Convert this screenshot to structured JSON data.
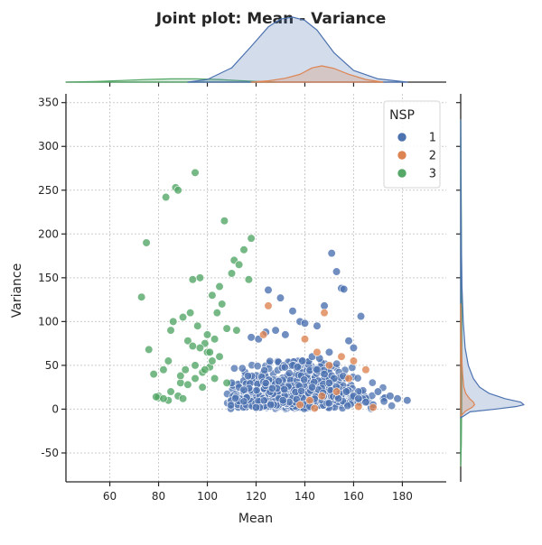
{
  "chart_data": {
    "type": "scatter",
    "title": "Joint plot: Mean - Variance",
    "xlabel": "Mean",
    "ylabel": "Variance",
    "xlim": [
      42,
      198
    ],
    "ylim": [
      -83,
      360
    ],
    "x_ticks": [
      60,
      80,
      100,
      120,
      140,
      160,
      180
    ],
    "y_ticks": [
      -50,
      0,
      50,
      100,
      150,
      200,
      250,
      300,
      350
    ],
    "grid": true,
    "legend": {
      "title": "NSP",
      "placement": "top-right",
      "entries": [
        "1",
        "2",
        "3"
      ]
    },
    "colors": {
      "1": "#4c72b0",
      "2": "#dd8452",
      "3": "#55a868"
    },
    "series": [
      {
        "name": "1",
        "x": [
          151,
          153,
          155,
          156,
          163,
          148,
          138,
          125,
          130,
          135,
          140,
          145,
          128,
          124,
          132,
          118,
          121,
          158,
          160,
          150,
          143,
          146,
          139,
          170,
          175,
          178,
          182,
          165,
          168,
          113,
          110,
          115,
          145,
          148,
          152,
          135,
          137,
          150,
          143,
          157,
          160,
          162,
          131,
          126,
          142,
          120
        ],
        "y": [
          178,
          157,
          138,
          137,
          106,
          118,
          100,
          136,
          127,
          112,
          98,
          95,
          90,
          88,
          85,
          82,
          80,
          78,
          70,
          65,
          60,
          58,
          55,
          20,
          15,
          12,
          10,
          8,
          5,
          25,
          30,
          22,
          45,
          40,
          35,
          50,
          48,
          30,
          25,
          20,
          15,
          12,
          10,
          5,
          3,
          2
        ]
      },
      {
        "name": "2",
        "x": [
          125,
          148,
          123,
          140,
          145,
          155,
          160,
          150,
          165,
          158,
          153,
          147,
          142,
          138,
          162,
          168,
          144
        ],
        "y": [
          118,
          110,
          85,
          80,
          65,
          60,
          55,
          50,
          45,
          35,
          20,
          15,
          10,
          5,
          3,
          2,
          1
        ]
      },
      {
        "name": "3",
        "x": [
          73,
          75,
          76,
          78,
          80,
          82,
          83,
          84,
          85,
          86,
          87,
          88,
          89,
          90,
          91,
          92,
          93,
          94,
          95,
          96,
          97,
          98,
          99,
          100,
          101,
          102,
          103,
          104,
          105,
          106,
          107,
          108,
          110,
          111,
          113,
          115,
          117,
          118,
          88,
          92,
          95,
          98,
          102,
          80,
          82,
          85,
          90,
          95,
          100,
          105,
          79,
          84,
          89,
          94,
          99,
          103,
          108,
          112,
          97,
          101
        ],
        "y": [
          128,
          190,
          68,
          40,
          15,
          45,
          242,
          10,
          90,
          100,
          253,
          250,
          30,
          105,
          45,
          78,
          110,
          148,
          270,
          95,
          150,
          25,
          75,
          65,
          48,
          130,
          35,
          110,
          140,
          120,
          215,
          92,
          155,
          170,
          165,
          182,
          148,
          195,
          15,
          28,
          35,
          42,
          55,
          13,
          12,
          20,
          12,
          50,
          85,
          60,
          14,
          55,
          38,
          72,
          45,
          80,
          30,
          90,
          70,
          65
        ]
      }
    ],
    "marginal": {
      "x_kde": {
        "1": {
          "x": [
            92,
            100,
            110,
            118,
            125,
            130,
            135,
            140,
            145,
            152,
            160,
            170,
            182
          ],
          "density": [
            0.0,
            0.04,
            0.22,
            0.55,
            0.85,
            0.97,
            1.0,
            0.95,
            0.8,
            0.45,
            0.18,
            0.05,
            0.0
          ]
        },
        "2": {
          "x": [
            118,
            125,
            132,
            138,
            143,
            147,
            152,
            158,
            165,
            172
          ],
          "density": [
            0.0,
            0.02,
            0.06,
            0.12,
            0.22,
            0.25,
            0.21,
            0.12,
            0.04,
            0.0
          ]
        },
        "3": {
          "x": [
            42,
            55,
            65,
            75,
            85,
            95,
            105,
            112,
            120,
            128
          ],
          "density": [
            0.0,
            0.01,
            0.025,
            0.04,
            0.05,
            0.05,
            0.04,
            0.025,
            0.01,
            0.0
          ]
        }
      },
      "y_kde": {
        "1": {
          "y": [
            -10,
            -3,
            0,
            3,
            5,
            8,
            12,
            18,
            25,
            35,
            50,
            70,
            100,
            140,
            190,
            260,
            330
          ],
          "density": [
            0.0,
            0.15,
            0.55,
            0.88,
            1.0,
            0.95,
            0.7,
            0.45,
            0.3,
            0.2,
            0.12,
            0.07,
            0.04,
            0.02,
            0.01,
            0.004,
            0.0
          ]
        },
        "2": {
          "y": [
            -8,
            -2,
            2,
            5,
            8,
            12,
            18,
            25,
            40,
            60,
            90,
            120
          ],
          "density": [
            0.0,
            0.08,
            0.18,
            0.22,
            0.2,
            0.14,
            0.08,
            0.05,
            0.03,
            0.015,
            0.005,
            0.0
          ]
        },
        "3": {
          "y": [
            -65,
            -40,
            0,
            50,
            100,
            150,
            200,
            250,
            300,
            330
          ],
          "density": [
            0.0,
            0.01,
            0.015,
            0.018,
            0.018,
            0.015,
            0.012,
            0.008,
            0.004,
            0.0
          ]
        }
      }
    }
  }
}
